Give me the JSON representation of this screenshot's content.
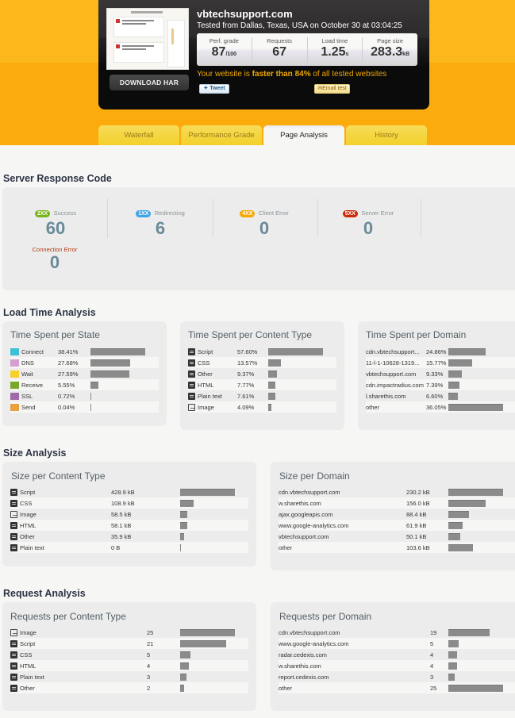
{
  "summary": {
    "site": "vbtechsupport.com",
    "tested": "Tested from Dallas, Texas, USA on October 30 at 03:04:25",
    "download_har": "DOWNLOAD HAR",
    "stats": [
      {
        "label": "Perf. grade",
        "value": "87",
        "unit": "/100"
      },
      {
        "label": "Requests",
        "value": "67",
        "unit": ""
      },
      {
        "label": "Load time",
        "value": "1.25",
        "unit": "s"
      },
      {
        "label": "Page size",
        "value": "283.3",
        "unit": "kB"
      }
    ],
    "faster_prefix": "Your website is ",
    "faster_bold": "faster than 84%",
    "faster_suffix": " of all tested websites",
    "tweet": "Tweet",
    "email": "Email test"
  },
  "tabs": [
    {
      "label": "Waterfall",
      "active": false
    },
    {
      "label": "Performance Grade",
      "active": false
    },
    {
      "label": "Page Analysis",
      "active": true
    },
    {
      "label": "History",
      "active": false
    }
  ],
  "server_response": {
    "title": "Server Response Code",
    "codes": [
      {
        "tag": "2XX",
        "label": "Success",
        "value": "60",
        "color": "#7ab51d"
      },
      {
        "tag": "1XX",
        "label": "Redirecting",
        "value": "6",
        "color": "#3ea4e8"
      },
      {
        "tag": "4XX",
        "label": "Client Error",
        "value": "0",
        "color": "#f5a800"
      },
      {
        "tag": "5XX",
        "label": "Server Error",
        "value": "0",
        "color": "#cc2a0a"
      }
    ],
    "connection_error": {
      "label": "Connection Error",
      "value": "0"
    }
  },
  "load_time": {
    "title": "Load Time Analysis",
    "per_state": {
      "title": "Time Spent per State",
      "rows": [
        {
          "name": "Connect",
          "pct": "38.41%",
          "color": "#3cc0d8",
          "w": 69
        },
        {
          "name": "DNS",
          "pct": "27.68%",
          "color": "#d39ed0",
          "w": 50
        },
        {
          "name": "Wait",
          "pct": "27.59%",
          "color": "#f7d12a",
          "w": 49
        },
        {
          "name": "Receive",
          "pct": "5.55%",
          "color": "#7aa82a",
          "w": 10
        },
        {
          "name": "SSL",
          "pct": "0.72%",
          "color": "#9d6ba8",
          "w": 1
        },
        {
          "name": "Send",
          "pct": "0.04%",
          "color": "#e8a040",
          "w": 1
        }
      ]
    },
    "per_content": {
      "title": "Time Spent per Content Type",
      "rows": [
        {
          "name": "Script",
          "pct": "57.60%",
          "icon": "script",
          "w": 69
        },
        {
          "name": "CSS",
          "pct": "13.57%",
          "icon": "css",
          "w": 16
        },
        {
          "name": "Other",
          "pct": "9.37%",
          "icon": "other",
          "w": 11
        },
        {
          "name": "HTML",
          "pct": "7.77%",
          "icon": "html",
          "w": 9
        },
        {
          "name": "Plain text",
          "pct": "7.61%",
          "icon": "text",
          "w": 9
        },
        {
          "name": "Image",
          "pct": "4.09%",
          "icon": "image",
          "w": 4
        }
      ]
    },
    "per_domain": {
      "title": "Time Spent per Domain",
      "rows": [
        {
          "name": "cdn.vbtechsupport...",
          "pct": "24.86%",
          "w": 47
        },
        {
          "name": "11-l-1-10628-1319...",
          "pct": "15.77%",
          "w": 30
        },
        {
          "name": "vbtechsupport.com",
          "pct": "9.33%",
          "w": 17
        },
        {
          "name": "cdn.impactradius.com",
          "pct": "7.39%",
          "w": 14
        },
        {
          "name": "l.sharethis.com",
          "pct": "6.60%",
          "w": 12
        },
        {
          "name": "other",
          "pct": "36.05%",
          "w": 69
        }
      ]
    }
  },
  "size": {
    "title": "Size Analysis",
    "per_content": {
      "title": "Size per Content Type",
      "rows": [
        {
          "name": "Script",
          "val": "428.9 kB",
          "icon": "script",
          "w": 69
        },
        {
          "name": "CSS",
          "val": "108.9 kB",
          "icon": "css",
          "w": 17
        },
        {
          "name": "Image",
          "val": "58.5 kB",
          "icon": "image",
          "w": 9
        },
        {
          "name": "HTML",
          "val": "58.1 kB",
          "icon": "html",
          "w": 9
        },
        {
          "name": "Other",
          "val": "35.9 kB",
          "icon": "other",
          "w": 5
        },
        {
          "name": "Plain text",
          "val": "0 B",
          "icon": "text",
          "w": 1
        }
      ]
    },
    "per_domain": {
      "title": "Size per Domain",
      "rows": [
        {
          "name": "cdn.vbtechsupport.com",
          "val": "230.2 kB",
          "w": 69
        },
        {
          "name": "w.sharethis.com",
          "val": "156.0 kB",
          "w": 47
        },
        {
          "name": "ajax.googleapis.com",
          "val": "88.4 kB",
          "w": 26
        },
        {
          "name": "www.google-analytics.com",
          "val": "61.9 kB",
          "w": 18
        },
        {
          "name": "vbtechsupport.com",
          "val": "50.1 kB",
          "w": 15
        },
        {
          "name": "other",
          "val": "103.6 kB",
          "w": 31
        }
      ]
    }
  },
  "requests": {
    "title": "Request Analysis",
    "per_content": {
      "title": "Requests per Content Type",
      "rows": [
        {
          "name": "Image",
          "val": "25",
          "icon": "image",
          "w": 69
        },
        {
          "name": "Script",
          "val": "21",
          "icon": "script",
          "w": 58
        },
        {
          "name": "CSS",
          "val": "5",
          "icon": "css",
          "w": 13
        },
        {
          "name": "HTML",
          "val": "4",
          "icon": "html",
          "w": 11
        },
        {
          "name": "Plain text",
          "val": "3",
          "icon": "text",
          "w": 8
        },
        {
          "name": "Other",
          "val": "2",
          "icon": "other",
          "w": 5
        }
      ]
    },
    "per_domain": {
      "title": "Requests per Domain",
      "rows": [
        {
          "name": "cdn.vbtechsupport.com",
          "val": "19",
          "w": 52
        },
        {
          "name": "www.google-analytics.com",
          "val": "5",
          "w": 13
        },
        {
          "name": "radar.cedexis.com",
          "val": "4",
          "w": 11
        },
        {
          "name": "w.sharethis.com",
          "val": "4",
          "w": 11
        },
        {
          "name": "report.cedexis.com",
          "val": "3",
          "w": 8
        },
        {
          "name": "other",
          "val": "25",
          "w": 69
        }
      ]
    }
  }
}
